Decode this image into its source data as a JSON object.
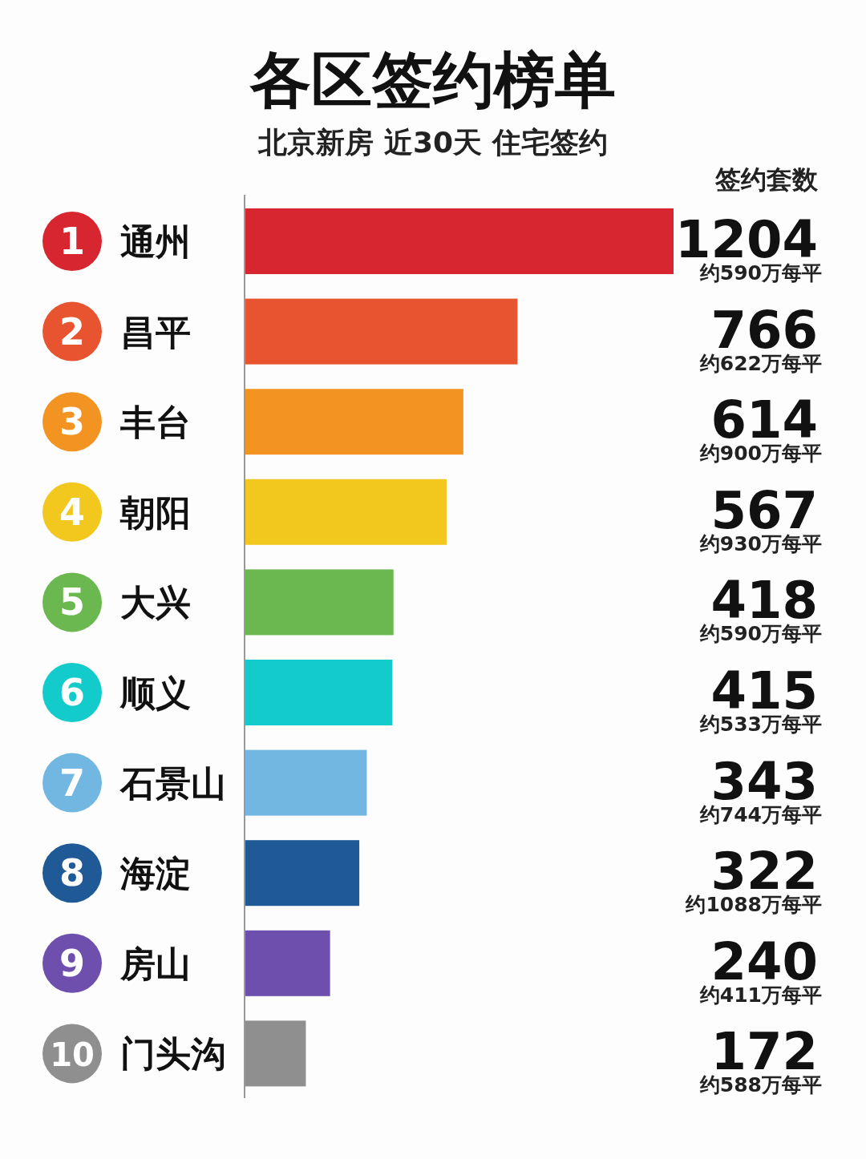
{
  "chart_data": {
    "type": "bar",
    "orientation": "horizontal",
    "title": "各区签约榜单",
    "subtitle": "北京新房 近30天 住宅签约",
    "categories": [
      "通州",
      "昌平",
      "丰台",
      "朝阳",
      "大兴",
      "顺义",
      "石景山",
      "海淀",
      "房山",
      "门头沟"
    ],
    "values": [
      1204,
      766,
      614,
      567,
      418,
      415,
      343,
      322,
      240,
      172
    ],
    "colors": [
      "#d7262f",
      "#e85430",
      "#f39422",
      "#f2c81f",
      "#6ab84f",
      "#14cbcb",
      "#72b6e2",
      "#1f5a96",
      "#6e4fae",
      "#8f8f8f"
    ],
    "data_labels": true,
    "annotations": [
      "签约套数",
      "1",
      "2",
      "3",
      "4",
      "5",
      "6",
      "7",
      "8",
      "9",
      "10",
      "约590万每平",
      "约622万每平",
      "约900万每平",
      "约930万每平",
      "约590万每平",
      "约533万每平",
      "约744万每平",
      "约1088万每平",
      "约411万每平",
      "约588万每平"
    ]
  }
}
